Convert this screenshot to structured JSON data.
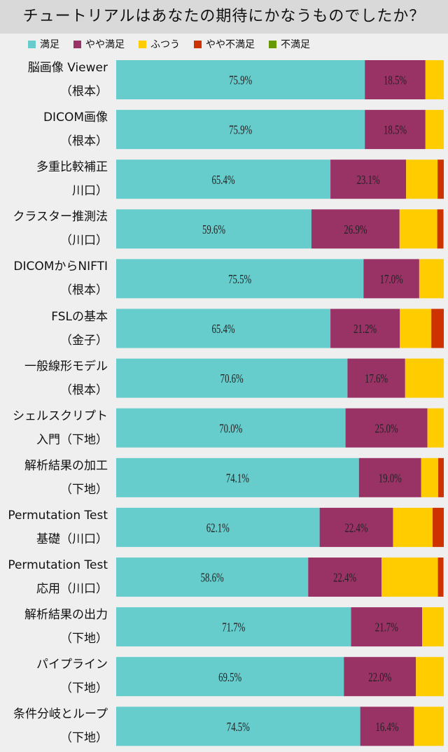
{
  "chart_data": {
    "type": "bar",
    "orientation": "horizontal",
    "stacked": true,
    "title": "チュートリアルはあなたの期待にかなうものでしたか？",
    "legend_position": "top",
    "categories": [
      [
        "脳画像 Viewer",
        "（根本）"
      ],
      [
        "DICOM画像",
        "（根本）"
      ],
      [
        "多重比較補正",
        "川口）"
      ],
      [
        "クラスター推測法",
        "（川口）"
      ],
      [
        "DICOMからNIFTI",
        "（根本）"
      ],
      [
        "FSLの基本",
        "（金子）"
      ],
      [
        "一般線形モデル",
        "（根本）"
      ],
      [
        "シェルスクリプト",
        "入門（下地）"
      ],
      [
        "解析結果の加工",
        "（下地）"
      ],
      [
        "Permutation Test",
        "基礎（川口）"
      ],
      [
        "Permutation Test",
        "応用（川口）"
      ],
      [
        "解析結果の出力",
        "（下地）"
      ],
      [
        "パイプライン",
        "（下地）"
      ],
      [
        "条件分岐とループ",
        "（下地）"
      ]
    ],
    "xlim": [
      0,
      100
    ],
    "series": [
      {
        "name": "満足",
        "color": "#66cccc",
        "labeled": true,
        "values": [
          75.9,
          75.9,
          65.4,
          59.6,
          75.5,
          65.4,
          70.6,
          70.0,
          74.1,
          62.1,
          58.6,
          71.7,
          69.5,
          74.5
        ]
      },
      {
        "name": "やや満足",
        "color": "#993366",
        "labeled": true,
        "values": [
          18.5,
          18.5,
          23.1,
          26.9,
          17.0,
          21.2,
          17.6,
          25.0,
          19.0,
          22.4,
          22.4,
          21.7,
          22.0,
          16.4
        ]
      },
      {
        "name": "ふつう",
        "color": "#ffcc00",
        "labeled": false,
        "values": [
          5.6,
          5.6,
          9.6,
          11.5,
          7.5,
          9.6,
          11.8,
          5.0,
          5.2,
          12.1,
          17.2,
          6.6,
          8.5,
          9.1
        ]
      },
      {
        "name": "やや不満足",
        "color": "#cc3300",
        "labeled": false,
        "values": [
          0,
          0,
          1.9,
          1.9,
          0,
          3.8,
          0,
          0,
          1.7,
          3.4,
          1.7,
          0,
          0,
          0
        ]
      },
      {
        "name": "不満足",
        "color": "#669900",
        "labeled": false,
        "values": [
          0,
          0,
          0,
          0,
          0,
          0,
          0,
          0,
          0,
          0,
          0,
          0,
          0,
          0
        ]
      }
    ]
  }
}
